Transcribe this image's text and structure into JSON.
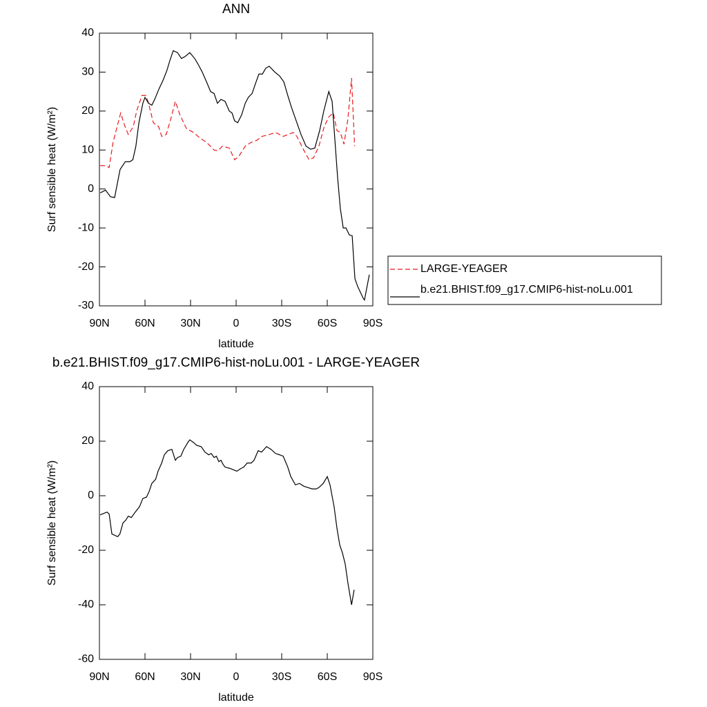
{
  "chart_data": [
    {
      "type": "line",
      "title": "ANN",
      "xlabel": "latitude",
      "ylabel": "Surf sensible heat (W/m²)",
      "xlim": [
        90,
        -90
      ],
      "xticks": [
        {
          "value": 90,
          "label": "90N"
        },
        {
          "value": 60,
          "label": "60N"
        },
        {
          "value": 30,
          "label": "30N"
        },
        0,
        {
          "value": -30,
          "label": "30S"
        },
        {
          "value": -60,
          "label": "60S"
        },
        {
          "value": -90,
          "label": "90S"
        }
      ],
      "ylim": [
        -30,
        40
      ],
      "yticks": [
        -30,
        -20,
        -10,
        0,
        10,
        20,
        30,
        40
      ],
      "legend": "right",
      "series": [
        {
          "name": "LARGE-YEAGER",
          "color": "#e8191c",
          "line_style": "dashed",
          "x": [
            89.5,
            86,
            83.6,
            81,
            79,
            76,
            73.6,
            71,
            67.7,
            65.5,
            62,
            59.5,
            58,
            54.5,
            51,
            49,
            46,
            43,
            40,
            37,
            32.7,
            28,
            23.6,
            19.5,
            14.5,
            12,
            9,
            4.5,
            1,
            -2,
            -6,
            -10,
            -13.6,
            -17,
            -22,
            -26,
            -31,
            -37.7,
            -40,
            -44.5,
            -48,
            -51,
            -54.5,
            -58,
            -61,
            -64,
            -66.4,
            -68.6,
            -71,
            -73.6,
            -76,
            -78
          ],
          "values": [
            6,
            6,
            5.5,
            12,
            15,
            19.5,
            16.5,
            14,
            16,
            20,
            24,
            24,
            22.5,
            17,
            16,
            13.5,
            14,
            18,
            22.5,
            19,
            15.5,
            14.5,
            13,
            12,
            10,
            9.8,
            11,
            10.5,
            7.5,
            8.5,
            11,
            12,
            12.5,
            13.5,
            14,
            14.5,
            13.5,
            14.5,
            13.5,
            10,
            7.5,
            8,
            11,
            16,
            18.5,
            19.5,
            15,
            14.5,
            11.5,
            18,
            28.5,
            11
          ]
        },
        {
          "name": "b.e21.BHIST.f09_g17.CMIP6-hist-noLu.001",
          "color": "#000000",
          "line_style": "solid",
          "x": [
            89.5,
            86,
            82.7,
            80,
            76.4,
            73,
            70,
            68,
            66,
            64,
            61.4,
            60,
            57.7,
            55.5,
            53.6,
            51,
            48,
            45.5,
            43.6,
            41.4,
            38.6,
            36,
            33.6,
            30.5,
            27.3,
            25,
            22.3,
            19.5,
            16.8,
            14.5,
            12.3,
            10,
            7.3,
            4.5,
            2.7,
            1,
            -1,
            -3.6,
            -6,
            -8,
            -10.5,
            -12.7,
            -15,
            -17.3,
            -19.5,
            -21.8,
            -25.5,
            -28.6,
            -31.4,
            -34,
            -36.4,
            -40,
            -42.7,
            -46,
            -49,
            -51.8,
            -55,
            -57.7,
            -61,
            -63.2,
            -66.8,
            -68.6,
            -70.5,
            -72.3,
            -74.5,
            -76.4,
            -78.2,
            -80,
            -83.6,
            -84.5,
            -87.7
          ],
          "values": [
            -1,
            -0.3,
            -2,
            -2.2,
            5,
            7,
            7,
            7.5,
            11,
            17,
            22,
            23.5,
            22,
            21.5,
            23,
            25.5,
            28,
            30.5,
            33,
            35.5,
            35,
            33.5,
            34,
            35,
            33.5,
            32,
            30,
            27.5,
            25,
            24.5,
            22,
            23,
            22.5,
            20,
            19.5,
            17.5,
            17,
            19,
            22,
            23.5,
            24.5,
            27,
            29.5,
            29.5,
            31,
            31.5,
            30,
            29,
            27.5,
            24,
            21,
            17,
            14,
            11,
            10.2,
            10.5,
            15,
            20,
            25,
            22.5,
            3,
            -5,
            -10,
            -10,
            -11.8,
            -12,
            -23,
            -25,
            -28,
            -28.5,
            -22
          ]
        }
      ]
    },
    {
      "type": "line",
      "title": "b.e21.BHIST.f09_g17.CMIP6-hist-noLu.001 - LARGE-YEAGER",
      "xlabel": "latitude",
      "ylabel": "Surf sensible heat (W/m²)",
      "xlim": [
        90,
        -90
      ],
      "xticks": [
        {
          "value": 90,
          "label": "90N"
        },
        {
          "value": 60,
          "label": "60N"
        },
        {
          "value": 30,
          "label": "30N"
        },
        0,
        {
          "value": -30,
          "label": "30S"
        },
        {
          "value": -60,
          "label": "60S"
        },
        {
          "value": -90,
          "label": "90S"
        }
      ],
      "ylim": [
        -60,
        40
      ],
      "yticks": [
        -60,
        -40,
        -20,
        0,
        20,
        40
      ],
      "series": [
        {
          "color": "#000000",
          "line_style": "solid",
          "x": [
            89.5,
            85,
            83.6,
            81.8,
            78,
            76.5,
            74.5,
            72.7,
            71,
            69,
            66.4,
            63.6,
            61.4,
            59,
            57.3,
            55.5,
            53,
            51.4,
            49,
            47.3,
            45,
            42.3,
            40,
            38.6,
            36.4,
            34.5,
            31.8,
            30.5,
            28,
            26,
            23,
            20.5,
            18,
            16.4,
            14.5,
            13,
            11.4,
            10,
            8.6,
            7.3,
            4,
            1.8,
            -0.5,
            -3.2,
            -5,
            -7.3,
            -10,
            -11.8,
            -14.5,
            -16.8,
            -20,
            -23,
            -25.9,
            -28.6,
            -31,
            -34,
            -36,
            -39,
            -41.8,
            -44.5,
            -47.3,
            -50,
            -52.7,
            -54.5,
            -57.3,
            -60,
            -61.8,
            -64.5,
            -66.4,
            -68.2,
            -70,
            -71.8,
            -73.6,
            -76,
            -77.7
          ],
          "values": [
            -7,
            -6,
            -6.7,
            -14,
            -15,
            -14,
            -10,
            -9,
            -7.5,
            -8,
            -6,
            -4,
            -1,
            -0.5,
            1.5,
            4.5,
            6,
            9,
            12,
            15,
            16.5,
            17,
            13,
            14,
            14.5,
            17,
            19.5,
            20.5,
            19.5,
            18.5,
            18,
            16,
            15,
            15.5,
            14,
            14.5,
            12.5,
            13,
            11.5,
            10.5,
            10,
            9.5,
            9,
            10,
            10.5,
            12,
            12,
            13,
            16.5,
            16,
            18,
            17,
            15.5,
            15,
            14.5,
            10.5,
            7,
            4,
            4.5,
            3.5,
            3,
            2.5,
            2.5,
            3,
            4.5,
            7,
            4,
            -4,
            -12,
            -18,
            -21,
            -25,
            -32,
            -40,
            -34.5
          ]
        }
      ]
    }
  ]
}
